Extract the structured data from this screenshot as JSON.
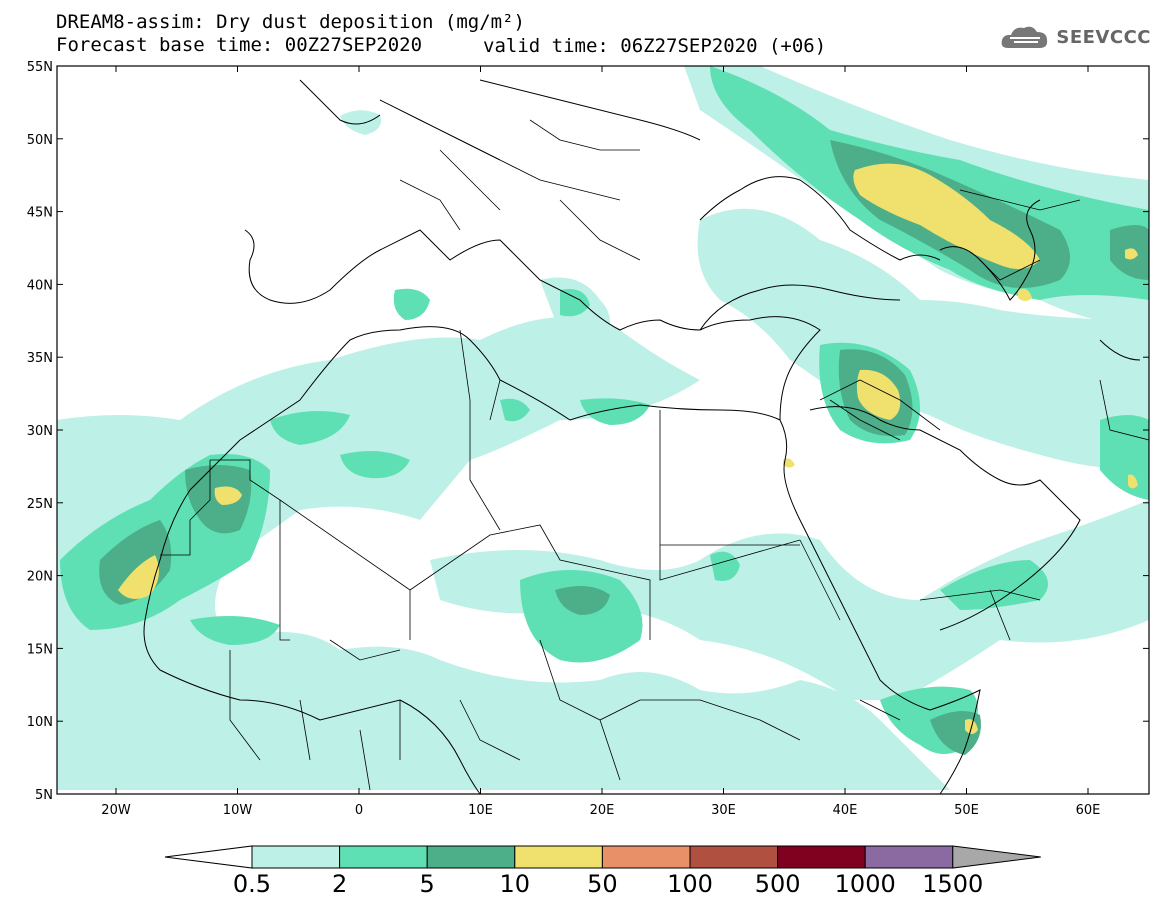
{
  "header": {
    "title": "DREAM8-assim: Dry dust deposition (mg/m²)",
    "base_time": "Forecast base time: 00Z27SEP2020",
    "valid_time": "valid time: 06Z27SEP2020 (+06)",
    "logo": "SEEVCCC"
  },
  "map": {
    "lat_labels": [
      "55N",
      "50N",
      "45N",
      "40N",
      "35N",
      "30N",
      "25N",
      "20N",
      "15N",
      "10N",
      "5N"
    ],
    "lon_labels": [
      "20W",
      "10W",
      "0",
      "10E",
      "20E",
      "30E",
      "40E",
      "50E",
      "60E"
    ]
  },
  "colorbar": {
    "labels": [
      "0.5",
      "2",
      "5",
      "10",
      "50",
      "100",
      "500",
      "1000",
      "1500"
    ],
    "colors": [
      "#bdf0e6",
      "#5ee0b4",
      "#4caf8a",
      "#f0e06e",
      "#e89068",
      "#b05040",
      "#800020",
      "#8a6aa0",
      "#a8a8a8"
    ]
  }
}
